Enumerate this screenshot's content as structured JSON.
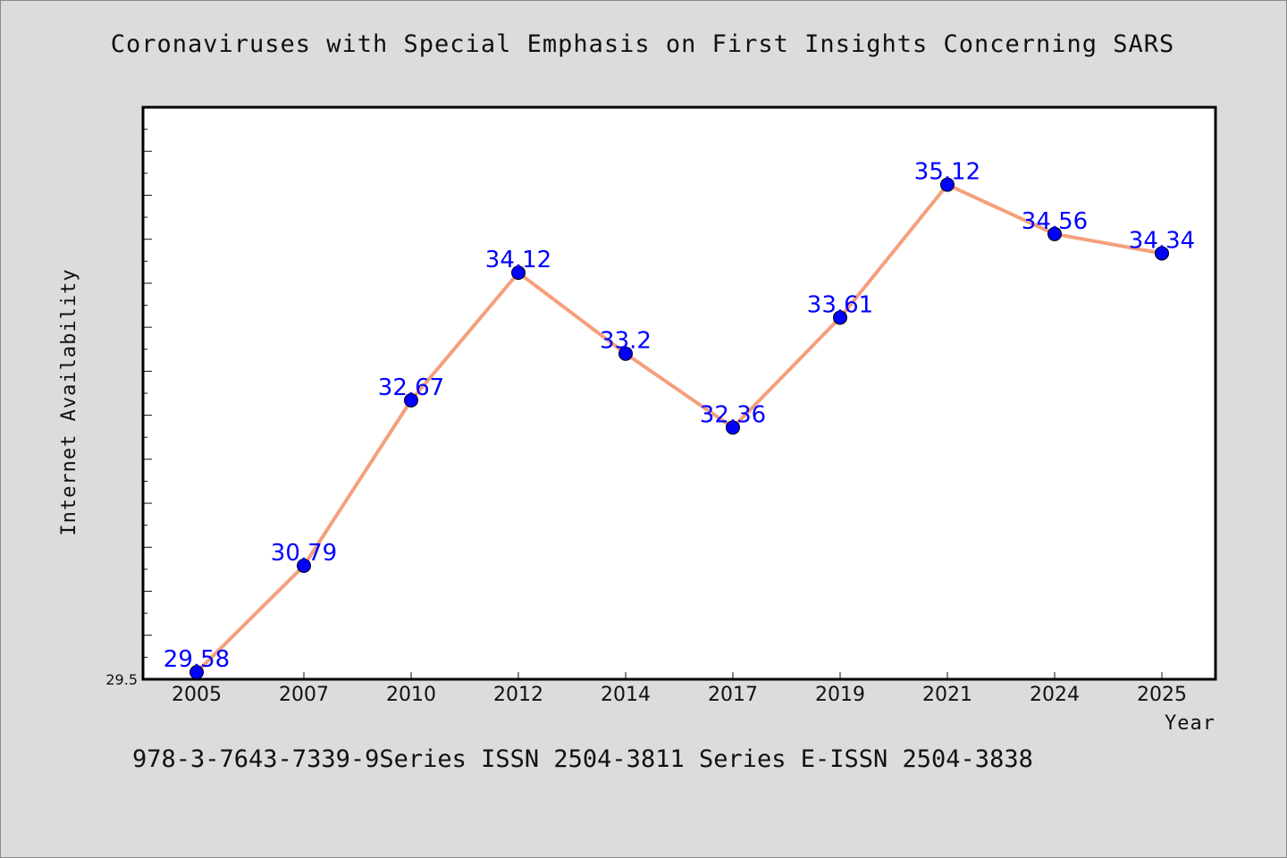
{
  "title": "Coronaviruses with Special Emphasis on First Insights Concerning SARS",
  "footer": "978-3-7643-7339-9Series ISSN 2504-3811 Series E-ISSN 2504-3838",
  "colors": {
    "background": "#dcdcdc",
    "plot_area": "#ffffff",
    "line": "#f4a07c",
    "marker": "#0000ff",
    "data_label": "#0000ff"
  },
  "chart_data": {
    "type": "line",
    "title": "Coronaviruses with Special Emphasis on First Insights Concerning SARS",
    "xlabel": "Year",
    "ylabel": "Internet Availability",
    "categories": [
      "2005",
      "2007",
      "2010",
      "2012",
      "2014",
      "2017",
      "2019",
      "2021",
      "2024",
      "2025"
    ],
    "values": [
      29.58,
      30.79,
      32.67,
      34.12,
      33.2,
      32.36,
      33.61,
      35.12,
      34.56,
      34.34
    ],
    "data_labels": [
      "29.58",
      "30.79",
      "32.67",
      "34.12",
      "33.2",
      "32.36",
      "33.61",
      "35.12",
      "34.56",
      "34.34"
    ],
    "ylim": [
      29.5,
      36.0
    ],
    "y_tick_labels": [
      "29.5"
    ],
    "grid": false,
    "legend": "none"
  }
}
